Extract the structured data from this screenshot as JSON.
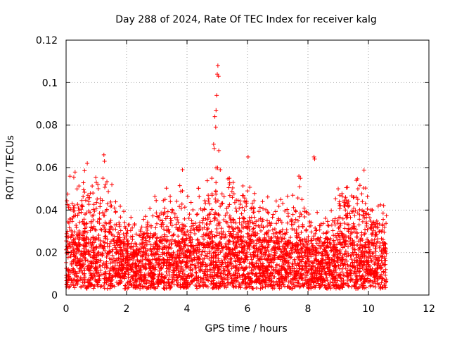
{
  "chart_data": {
    "type": "scatter",
    "title": "Day 288 of 2024, Rate Of TEC Index for receiver kalg",
    "xlabel": "GPS time / hours",
    "ylabel": "ROTI / TECUs",
    "xlim": [
      0,
      12
    ],
    "ylim": [
      0,
      0.12
    ],
    "x_ticks": [
      "0",
      "2",
      "4",
      "6",
      "8",
      "10",
      "12"
    ],
    "y_ticks": [
      "0",
      "0.02",
      "0.04",
      "0.06",
      "0.08",
      "0.1",
      "0.12"
    ],
    "grid": true,
    "marker": "+",
    "color": "#ff0000",
    "data_extent_hours": [
      0,
      10.6
    ],
    "baseline_roti_range": [
      0.003,
      0.025
    ],
    "notable_points": [
      {
        "x": 0.05,
        "y": 0.03
      },
      {
        "x": 0.2,
        "y": 0.043
      },
      {
        "x": 0.25,
        "y": 0.037
      },
      {
        "x": 0.7,
        "y": 0.062
      },
      {
        "x": 0.72,
        "y": 0.047
      },
      {
        "x": 0.75,
        "y": 0.044
      },
      {
        "x": 1.0,
        "y": 0.053
      },
      {
        "x": 1.05,
        "y": 0.052
      },
      {
        "x": 1.25,
        "y": 0.066
      },
      {
        "x": 1.27,
        "y": 0.063
      },
      {
        "x": 1.22,
        "y": 0.055
      },
      {
        "x": 1.3,
        "y": 0.052
      },
      {
        "x": 1.5,
        "y": 0.042
      },
      {
        "x": 1.6,
        "y": 0.041
      },
      {
        "x": 3.45,
        "y": 0.044
      },
      {
        "x": 3.85,
        "y": 0.059
      },
      {
        "x": 3.35,
        "y": 0.037
      },
      {
        "x": 3.5,
        "y": 0.039
      },
      {
        "x": 4.7,
        "y": 0.047
      },
      {
        "x": 4.82,
        "y": 0.055
      },
      {
        "x": 4.88,
        "y": 0.071
      },
      {
        "x": 4.9,
        "y": 0.069
      },
      {
        "x": 4.92,
        "y": 0.084
      },
      {
        "x": 4.95,
        "y": 0.079
      },
      {
        "x": 5.0,
        "y": 0.104
      },
      {
        "x": 5.02,
        "y": 0.108
      },
      {
        "x": 5.04,
        "y": 0.103
      },
      {
        "x": 4.98,
        "y": 0.094
      },
      {
        "x": 4.96,
        "y": 0.087
      },
      {
        "x": 5.05,
        "y": 0.068
      },
      {
        "x": 5.1,
        "y": 0.059
      },
      {
        "x": 5.4,
        "y": 0.055
      },
      {
        "x": 5.5,
        "y": 0.046
      },
      {
        "x": 6.02,
        "y": 0.065
      },
      {
        "x": 6.0,
        "y": 0.049
      },
      {
        "x": 6.5,
        "y": 0.044
      },
      {
        "x": 7.1,
        "y": 0.045
      },
      {
        "x": 7.5,
        "y": 0.047
      },
      {
        "x": 7.7,
        "y": 0.056
      },
      {
        "x": 7.72,
        "y": 0.051
      },
      {
        "x": 7.75,
        "y": 0.055
      },
      {
        "x": 7.8,
        "y": 0.045
      },
      {
        "x": 8.2,
        "y": 0.065
      },
      {
        "x": 8.22,
        "y": 0.064
      },
      {
        "x": 8.6,
        "y": 0.029
      },
      {
        "x": 9.0,
        "y": 0.05
      },
      {
        "x": 9.05,
        "y": 0.047
      },
      {
        "x": 9.3,
        "y": 0.043
      },
      {
        "x": 9.5,
        "y": 0.046
      },
      {
        "x": 9.6,
        "y": 0.054
      },
      {
        "x": 9.65,
        "y": 0.05
      },
      {
        "x": 9.8,
        "y": 0.044
      },
      {
        "x": 9.9,
        "y": 0.043
      },
      {
        "x": 10.0,
        "y": 0.038
      },
      {
        "x": 10.2,
        "y": 0.026
      },
      {
        "x": 10.5,
        "y": 0.022
      }
    ]
  }
}
